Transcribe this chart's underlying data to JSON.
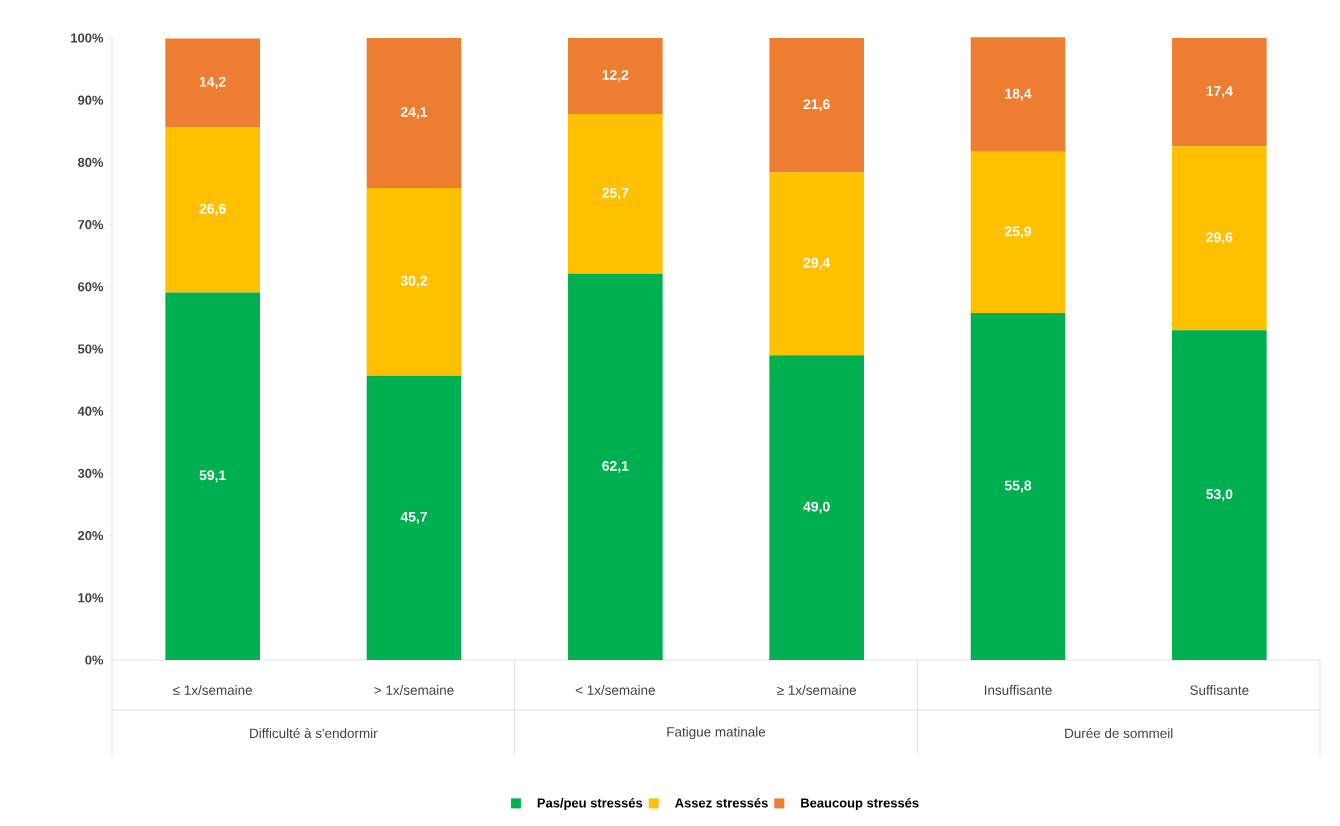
{
  "chart_data": {
    "type": "bar",
    "stacked": true,
    "categories": [
      "≤ 1x/semaine",
      "> 1x/semaine",
      "< 1x/semaine",
      "≥ 1x/semaine",
      "Insuffisante",
      "Suffisante"
    ],
    "annotations": [
      "Difficulté à s'endormir",
      "Fatigue matinale",
      "Durée de sommeil"
    ],
    "series": [
      {
        "name": "Pas/peu stressés",
        "color": "#00b050",
        "values": [
          59.1,
          45.7,
          62.1,
          49.0,
          55.8,
          53.0
        ],
        "value_labels": [
          "59,1",
          "45,7",
          "62,1",
          "49,0",
          "55,8",
          "53,0"
        ]
      },
      {
        "name": "Assez stressés",
        "color": "#ffc000",
        "values": [
          26.6,
          30.2,
          25.7,
          29.4,
          25.9,
          29.6
        ],
        "value_labels": [
          "26,6",
          "30,2",
          "25,7",
          "29,4",
          "25,9",
          "29,6"
        ]
      },
      {
        "name": "Beaucoup stressés",
        "color": "#ed7d31",
        "values": [
          14.2,
          24.1,
          12.2,
          21.6,
          18.4,
          17.4
        ],
        "value_labels": [
          "14,2",
          "24,1",
          "12,2",
          "21,6",
          "18,4",
          "17,4"
        ]
      }
    ],
    "ylim": [
      0,
      100
    ],
    "yticks": [
      {
        "value": 0,
        "label": "0%"
      },
      {
        "value": 10,
        "label": "10%"
      },
      {
        "value": 20,
        "label": "20%"
      },
      {
        "value": 30,
        "label": "30%"
      },
      {
        "value": 40,
        "label": "40%"
      },
      {
        "value": 50,
        "label": "50%"
      },
      {
        "value": 60,
        "label": "60%"
      },
      {
        "value": 70,
        "label": "70%"
      },
      {
        "value": 80,
        "label": "80%"
      },
      {
        "value": 90,
        "label": "90%"
      },
      {
        "value": 100,
        "label": "100%"
      }
    ],
    "legend": "bottom"
  }
}
